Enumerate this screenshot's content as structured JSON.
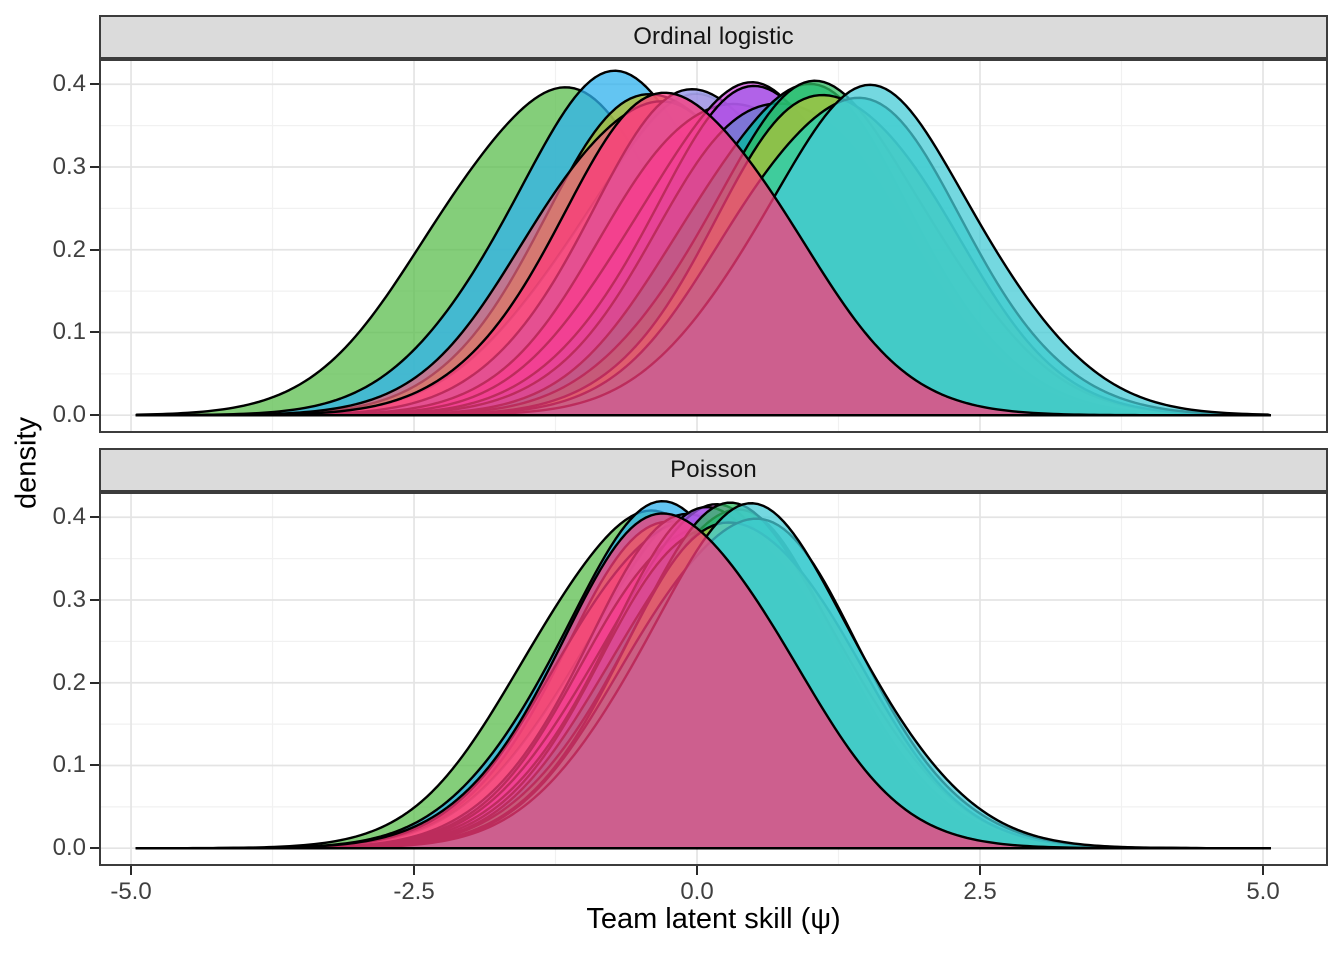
{
  "figure": {
    "x_axis_title": "Team latent skill (ψ)",
    "y_axis_title": "density"
  },
  "axes": {
    "x": {
      "tick_labels": [
        "-5.0",
        "-2.5",
        "0.0",
        "2.5",
        "5.0"
      ],
      "tick_values": [
        -5,
        -2.5,
        0,
        2.5,
        5
      ]
    },
    "y": {
      "tick_labels": [
        "0.0",
        "0.1",
        "0.2",
        "0.3",
        "0.4"
      ],
      "tick_values": [
        0,
        0.1,
        0.2,
        0.3,
        0.4
      ]
    }
  },
  "theme": {
    "strip_fill": "#DBDBDB",
    "strip_text_color": "#141414",
    "panel_border_color": "#3C3C3C",
    "grid_major_color": "#E4E4E4",
    "grid_minor_color": "#F1F1F1",
    "tick_mark_color": "#2A2A2A",
    "tick_label_color": "#404040",
    "background": "#FFFFFF"
  },
  "chart_data": {
    "type": "area",
    "subtype": "faceted-overlapping-density-curves",
    "xlabel": "Team latent skill (ψ)",
    "ylabel": "density",
    "legend": "none",
    "grid": "on",
    "x_range": [
      -5.283,
      5.574
    ],
    "y_range": [
      -0.0215,
      0.4305
    ],
    "curve_domain": [
      -4.95,
      5.06
    ],
    "fill_alpha": 0.75,
    "stroke": "#000000",
    "stroke_width": 2.4,
    "facets": [
      {
        "label": "Ordinal logistic",
        "series": [
          {
            "name": "green",
            "color": "#5BBD4E",
            "mean": -1.27,
            "sd": 1.03,
            "peak": 0.394
          },
          {
            "name": "skyblue",
            "color": "#2FB2EE",
            "mean": -0.7,
            "sd": 1.0,
            "peak": 0.401
          },
          {
            "name": "olive",
            "color": "#B8BE26",
            "mean": -0.32,
            "sd": 0.99,
            "peak": 0.396
          },
          {
            "name": "rose",
            "color": "#E8617C",
            "mean": -0.42,
            "sd": 1.0,
            "peak": 0.386
          },
          {
            "name": "palepink",
            "color": "#FF9FC0",
            "mean": -0.03,
            "sd": 1.06,
            "peak": 0.374,
            "fill_opacity": 0.45,
            "stroke_opacity": 0.25
          },
          {
            "name": "periwinkle",
            "color": "#8E8FE8",
            "mean": 0.06,
            "sd": 1.0,
            "peak": 0.393
          },
          {
            "name": "magenta",
            "color": "#EF3FC0",
            "mean": 0.26,
            "sd": 1.0,
            "peak": 0.39
          },
          {
            "name": "orchid",
            "color": "#D44DE0",
            "mean": 0.42,
            "sd": 1.0,
            "peak": 0.391
          },
          {
            "name": "violet",
            "color": "#A25BE8",
            "mean": 0.58,
            "sd": 1.0,
            "peak": 0.389
          },
          {
            "name": "slateblue",
            "color": "#6E7FD0",
            "mean": 0.75,
            "sd": 1.02,
            "peak": 0.392
          },
          {
            "name": "teal",
            "color": "#00BD9C",
            "mean": 0.9,
            "sd": 1.0,
            "peak": 0.396
          },
          {
            "name": "seagreen",
            "color": "#30BE64",
            "mean": 1.08,
            "sd": 1.02,
            "peak": 0.39
          },
          {
            "name": "olive2",
            "color": "#AEC43C",
            "mean": 1.2,
            "sd": 0.99,
            "peak": 0.397
          },
          {
            "name": "turquoise",
            "color": "#26CFB8",
            "mean": 1.32,
            "sd": 1.0,
            "peak": 0.388
          },
          {
            "name": "cyan",
            "color": "#45CBD6",
            "mean": 1.52,
            "sd": 1.0,
            "peak": 0.384
          },
          {
            "name": "pink",
            "color": "#FB3B7B",
            "mean": -0.18,
            "sd": 1.0,
            "peak": 0.391
          }
        ]
      },
      {
        "label": "Poisson",
        "series": [
          {
            "name": "green",
            "color": "#5BBD4E",
            "mean": -0.5,
            "sd": 0.97,
            "peak": 0.406
          },
          {
            "name": "skyblue",
            "color": "#2FB2EE",
            "mean": -0.28,
            "sd": 0.97,
            "peak": 0.404
          },
          {
            "name": "olive",
            "color": "#B8BE26",
            "mean": -0.15,
            "sd": 0.97,
            "peak": 0.403
          },
          {
            "name": "rose",
            "color": "#E8617C",
            "mean": -0.18,
            "sd": 0.97,
            "peak": 0.402
          },
          {
            "name": "palepink",
            "color": "#FF9FC0",
            "mean": -0.05,
            "sd": 1.0,
            "peak": 0.39,
            "fill_opacity": 0.45,
            "stroke_opacity": 0.25
          },
          {
            "name": "periwinkle",
            "color": "#8E8FE8",
            "mean": 0.01,
            "sd": 0.97,
            "peak": 0.403
          },
          {
            "name": "magenta",
            "color": "#EF3FC0",
            "mean": 0.06,
            "sd": 0.97,
            "peak": 0.404
          },
          {
            "name": "orchid",
            "color": "#D44DE0",
            "mean": 0.11,
            "sd": 0.97,
            "peak": 0.404
          },
          {
            "name": "violet",
            "color": "#A25BE8",
            "mean": 0.16,
            "sd": 0.97,
            "peak": 0.403
          },
          {
            "name": "slateblue",
            "color": "#6E7FD0",
            "mean": 0.21,
            "sd": 0.97,
            "peak": 0.404
          },
          {
            "name": "teal",
            "color": "#00BD9C",
            "mean": 0.27,
            "sd": 0.97,
            "peak": 0.405
          },
          {
            "name": "seagreen",
            "color": "#30BE64",
            "mean": 0.33,
            "sd": 0.98,
            "peak": 0.403
          },
          {
            "name": "olive2",
            "color": "#AEC43C",
            "mean": 0.37,
            "sd": 0.97,
            "peak": 0.404
          },
          {
            "name": "turquoise",
            "color": "#26CFB8",
            "mean": 0.42,
            "sd": 0.98,
            "peak": 0.403
          },
          {
            "name": "cyan",
            "color": "#45CBD6",
            "mean": 0.47,
            "sd": 0.98,
            "peak": 0.401
          },
          {
            "name": "pink",
            "color": "#FB3B7B",
            "mean": -0.2,
            "sd": 0.98,
            "peak": 0.406
          }
        ]
      }
    ]
  }
}
